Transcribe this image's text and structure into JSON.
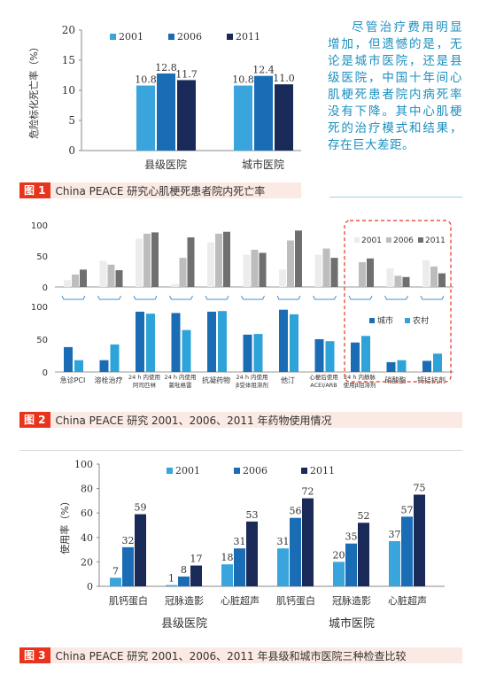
{
  "colors": {
    "c2001": "#3aa5dd",
    "c2006": "#1a6db4",
    "c2011": "#1a2a58",
    "g2001": "#ececec",
    "g2006": "#bdbdbd",
    "g2011": "#6f6f6f",
    "urban": "#1a6db4",
    "rural": "#2ea3d9",
    "caption_red": "#e8341c",
    "dash_red": "#e8341c"
  },
  "sidebar": {
    "text": "尽管治疗费用明显增加，但遗憾的是，无论是城市医院，还是县级医院，中国十年间心肌梗死患者院内病死率没有下降。其中心肌梗死的治疗模式和结果，存在巨大差距。"
  },
  "figure1": {
    "caption_num": "图 1",
    "caption_text": "China PEACE 研究心肌梗死患者院内死亡率",
    "chart_data": {
      "type": "bar",
      "categories": [
        "县级医院",
        "城市医院"
      ],
      "series": [
        {
          "name": "2001",
          "values": [
            10.8,
            10.8
          ]
        },
        {
          "name": "2006",
          "values": [
            12.8,
            12.4
          ]
        },
        {
          "name": "2011",
          "values": [
            11.7,
            11.0
          ]
        }
      ],
      "ylabel": "危险标化死亡率（%）",
      "ylim": [
        0,
        20
      ],
      "yticks": [
        0,
        5,
        10,
        15,
        20
      ],
      "legend": "top"
    }
  },
  "figure2": {
    "caption_num": "图 2",
    "caption_text": "China PEACE 研究 2001、2006、2011 年药物使用情况",
    "chart_data": [
      {
        "type": "bar",
        "categories": [
          "急诊PCI",
          "溶栓治疗",
          "24 h 内使用阿司匹林",
          "24 h 内使用氯吡格雷",
          "抗凝药物",
          "24 h 内使用β受体阻滞剂",
          "他汀",
          "心梗后使用ACEI/ARB",
          "24 h 内静脉使用β受体阻滞剂",
          "硝酸酯",
          "钙拮抗剂"
        ],
        "series": [
          {
            "name": "2001",
            "values": [
              11,
              42,
              78,
              5,
              72,
              52,
              28,
              52,
              null,
              30,
              43
            ]
          },
          {
            "name": "2006",
            "values": [
              20,
              36,
              86,
              47,
              86,
              60,
              75,
              62,
              40,
              18,
              33
            ]
          },
          {
            "name": "2011",
            "values": [
              28,
              27,
              88,
              80,
              89,
              55,
              91,
              47,
              46,
              16,
              22
            ]
          }
        ],
        "ylim": [
          0,
          100
        ],
        "yticks": [
          0,
          50,
          100
        ],
        "legend": "inside-dashed-box"
      },
      {
        "type": "bar",
        "categories": [
          "急诊PCI",
          "溶栓治疗",
          "24 h 内使用阿司匹林",
          "24 h 内使用氯吡格雷",
          "抗凝药物",
          "24 h 内使用β受体阻滞剂",
          "他汀",
          "心梗后使用ACEI/ARB",
          "24 h 内静脉使用β受体阻滞剂",
          "硝酸酯",
          "钙拮抗剂"
        ],
        "series": [
          {
            "name": "城市",
            "values": [
              38,
              18,
              92,
              90,
              92,
              57,
              95,
              50,
              45,
              15,
              17
            ]
          },
          {
            "name": "农村",
            "values": [
              18,
              42,
              89,
              64,
              93,
              58,
              88,
              47,
              55,
              18,
              28
            ]
          }
        ],
        "ylim": [
          0,
          100
        ],
        "yticks": [
          0,
          50,
          100
        ],
        "legend": "inside-dashed-box"
      }
    ],
    "xlabels": [
      "急诊PCI",
      "溶栓治疗",
      "24 h 内使用\n阿司匹林",
      "24 h 内使用\n氯吡格雷",
      "抗凝药物",
      "24 h 内使用\nβ受体阻滞剂",
      "他汀",
      "心梗后使用\nACEI/ARB",
      "24 h 内静脉\n使用β阻滞剂",
      "硝酸酯",
      "钙拮抗剂"
    ]
  },
  "figure3": {
    "caption_num": "图 3",
    "caption_text": "China PEACE 研究 2001、2006、2011 年县级和城市医院三种检查比较",
    "chart_data": {
      "type": "bar",
      "categories": [
        "肌钙蛋白",
        "冠脉造影",
        "心脏超声",
        "肌钙蛋白",
        "冠脉造影",
        "心脏超声"
      ],
      "groups": [
        "县级医院",
        "城市医院"
      ],
      "series": [
        {
          "name": "2001",
          "values": [
            7,
            1,
            18,
            31,
            20,
            37
          ]
        },
        {
          "name": "2006",
          "values": [
            32,
            8,
            31,
            56,
            35,
            57
          ]
        },
        {
          "name": "2011",
          "values": [
            59,
            17,
            53,
            72,
            52,
            75
          ]
        }
      ],
      "ylabel": "使用率（%）",
      "ylim": [
        0,
        100
      ],
      "yticks": [
        0,
        20,
        40,
        60,
        80,
        100
      ],
      "legend": "top"
    }
  }
}
